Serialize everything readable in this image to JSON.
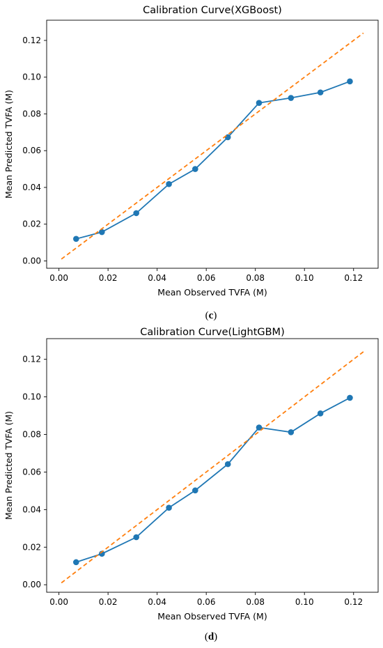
{
  "figure": {
    "panels": [
      {
        "caption_letter": "c"
      },
      {
        "caption_letter": "d"
      }
    ]
  },
  "chart_data": [
    {
      "type": "line",
      "title": "Calibration Curve(XGBoost)",
      "xlabel": "Mean Observed TVFA (M)",
      "ylabel": "Mean Predicted TVFA (M)",
      "xlim": [
        -0.005,
        0.13
      ],
      "ylim": [
        -0.004,
        0.131
      ],
      "x_ticks": [
        0.0,
        0.02,
        0.04,
        0.06,
        0.08,
        0.1,
        0.12
      ],
      "x_tick_labels": [
        "0.00",
        "0.02",
        "0.04",
        "0.06",
        "0.08",
        "0.10",
        "0.12"
      ],
      "y_ticks": [
        0.0,
        0.02,
        0.04,
        0.06,
        0.08,
        0.1,
        0.12
      ],
      "y_tick_labels": [
        "0.00",
        "0.02",
        "0.04",
        "0.06",
        "0.08",
        "0.10",
        "0.12"
      ],
      "grid": false,
      "series": [
        {
          "style": "line-markers",
          "color": "#1f77b4",
          "x": [
            0.007,
            0.0175,
            0.0315,
            0.0448,
            0.0555,
            0.0688,
            0.0815,
            0.0945,
            0.1065,
            0.1185
          ],
          "y": [
            0.012,
            0.0157,
            0.026,
            0.0418,
            0.05,
            0.0673,
            0.086,
            0.0887,
            0.0917,
            0.0977
          ]
        },
        {
          "style": "dashed",
          "color": "#ff7f0e",
          "x": [
            0.001,
            0.124
          ],
          "y": [
            0.001,
            0.124
          ]
        }
      ]
    },
    {
      "type": "line",
      "title": "Calibration Curve(LightGBM)",
      "xlabel": "Mean Observed TVFA (M)",
      "ylabel": "Mean Predicted TVFA (M)",
      "xlim": [
        -0.005,
        0.13
      ],
      "ylim": [
        -0.004,
        0.131
      ],
      "x_ticks": [
        0.0,
        0.02,
        0.04,
        0.06,
        0.08,
        0.1,
        0.12
      ],
      "x_tick_labels": [
        "0.00",
        "0.02",
        "0.04",
        "0.06",
        "0.08",
        "0.10",
        "0.12"
      ],
      "y_ticks": [
        0.0,
        0.02,
        0.04,
        0.06,
        0.08,
        0.1,
        0.12
      ],
      "y_tick_labels": [
        "0.00",
        "0.02",
        "0.04",
        "0.06",
        "0.08",
        "0.10",
        "0.12"
      ],
      "grid": false,
      "series": [
        {
          "style": "line-markers",
          "color": "#1f77b4",
          "x": [
            0.007,
            0.0175,
            0.0315,
            0.0448,
            0.0555,
            0.0688,
            0.0815,
            0.0945,
            0.1065,
            0.1185
          ],
          "y": [
            0.012,
            0.0165,
            0.0253,
            0.041,
            0.0502,
            0.0642,
            0.0837,
            0.0812,
            0.0912,
            0.0995
          ]
        },
        {
          "style": "dashed",
          "color": "#ff7f0e",
          "x": [
            0.001,
            0.124
          ],
          "y": [
            0.001,
            0.124
          ]
        }
      ]
    }
  ]
}
